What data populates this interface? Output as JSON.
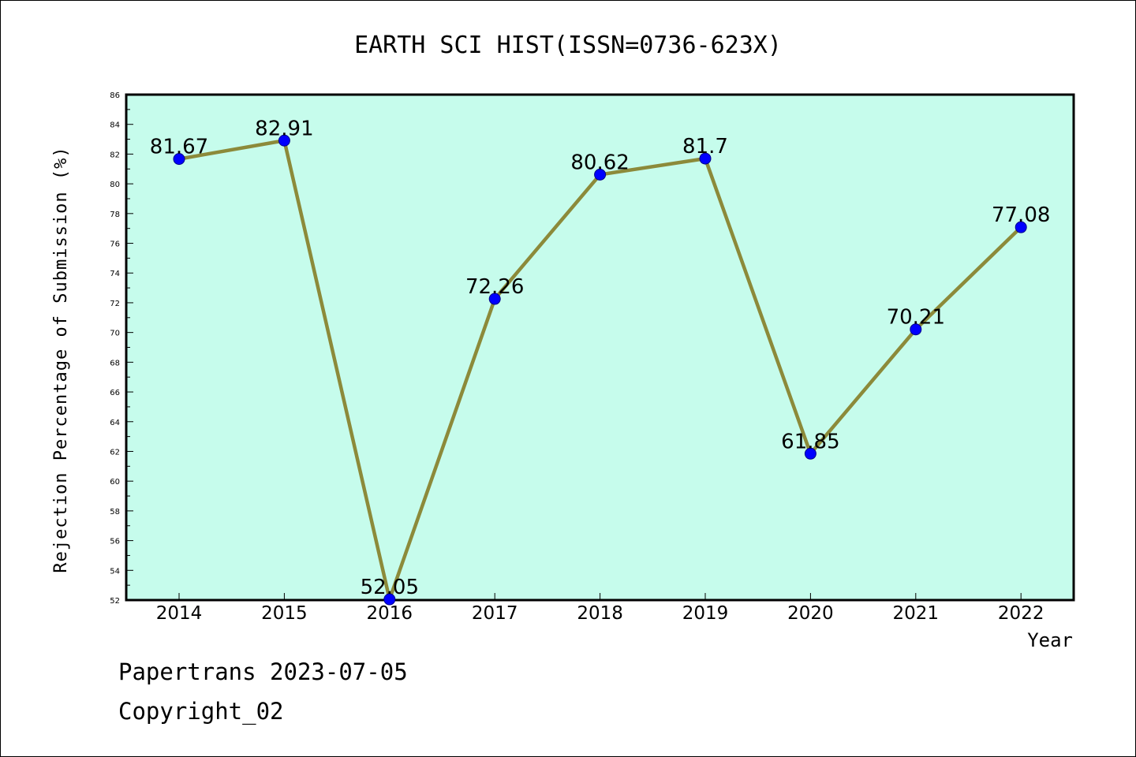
{
  "chart_data": {
    "type": "line",
    "title": "EARTH SCI HIST(ISSN=0736-623X)",
    "xlabel": "Year",
    "ylabel": "Rejection Percentage of Submission (%)",
    "categories": [
      "2014",
      "2015",
      "2016",
      "2017",
      "2018",
      "2019",
      "2020",
      "2021",
      "2022"
    ],
    "values": [
      81.67,
      82.91,
      52.05,
      72.26,
      80.62,
      81.7,
      61.85,
      70.21,
      77.08
    ],
    "data_labels": [
      "81.67",
      "82.91",
      "52.05",
      "72.26",
      "80.62",
      "81.7",
      "61.85",
      "70.21",
      "77.08"
    ],
    "ylim": [
      52,
      86
    ],
    "yticks": [
      "52",
      "54",
      "56",
      "58",
      "60",
      "62",
      "64",
      "66",
      "68",
      "70",
      "72",
      "74",
      "76",
      "78",
      "80",
      "82",
      "84",
      "86"
    ],
    "grid": false,
    "colors": {
      "plot_background": "#c6fcec",
      "line": "#8c8a3a",
      "marker_fill": "#0000ff",
      "marker_stroke": "#00008b"
    }
  },
  "footer": {
    "line1": "Papertrans 2023-07-05",
    "line2": "Copyright_02"
  }
}
